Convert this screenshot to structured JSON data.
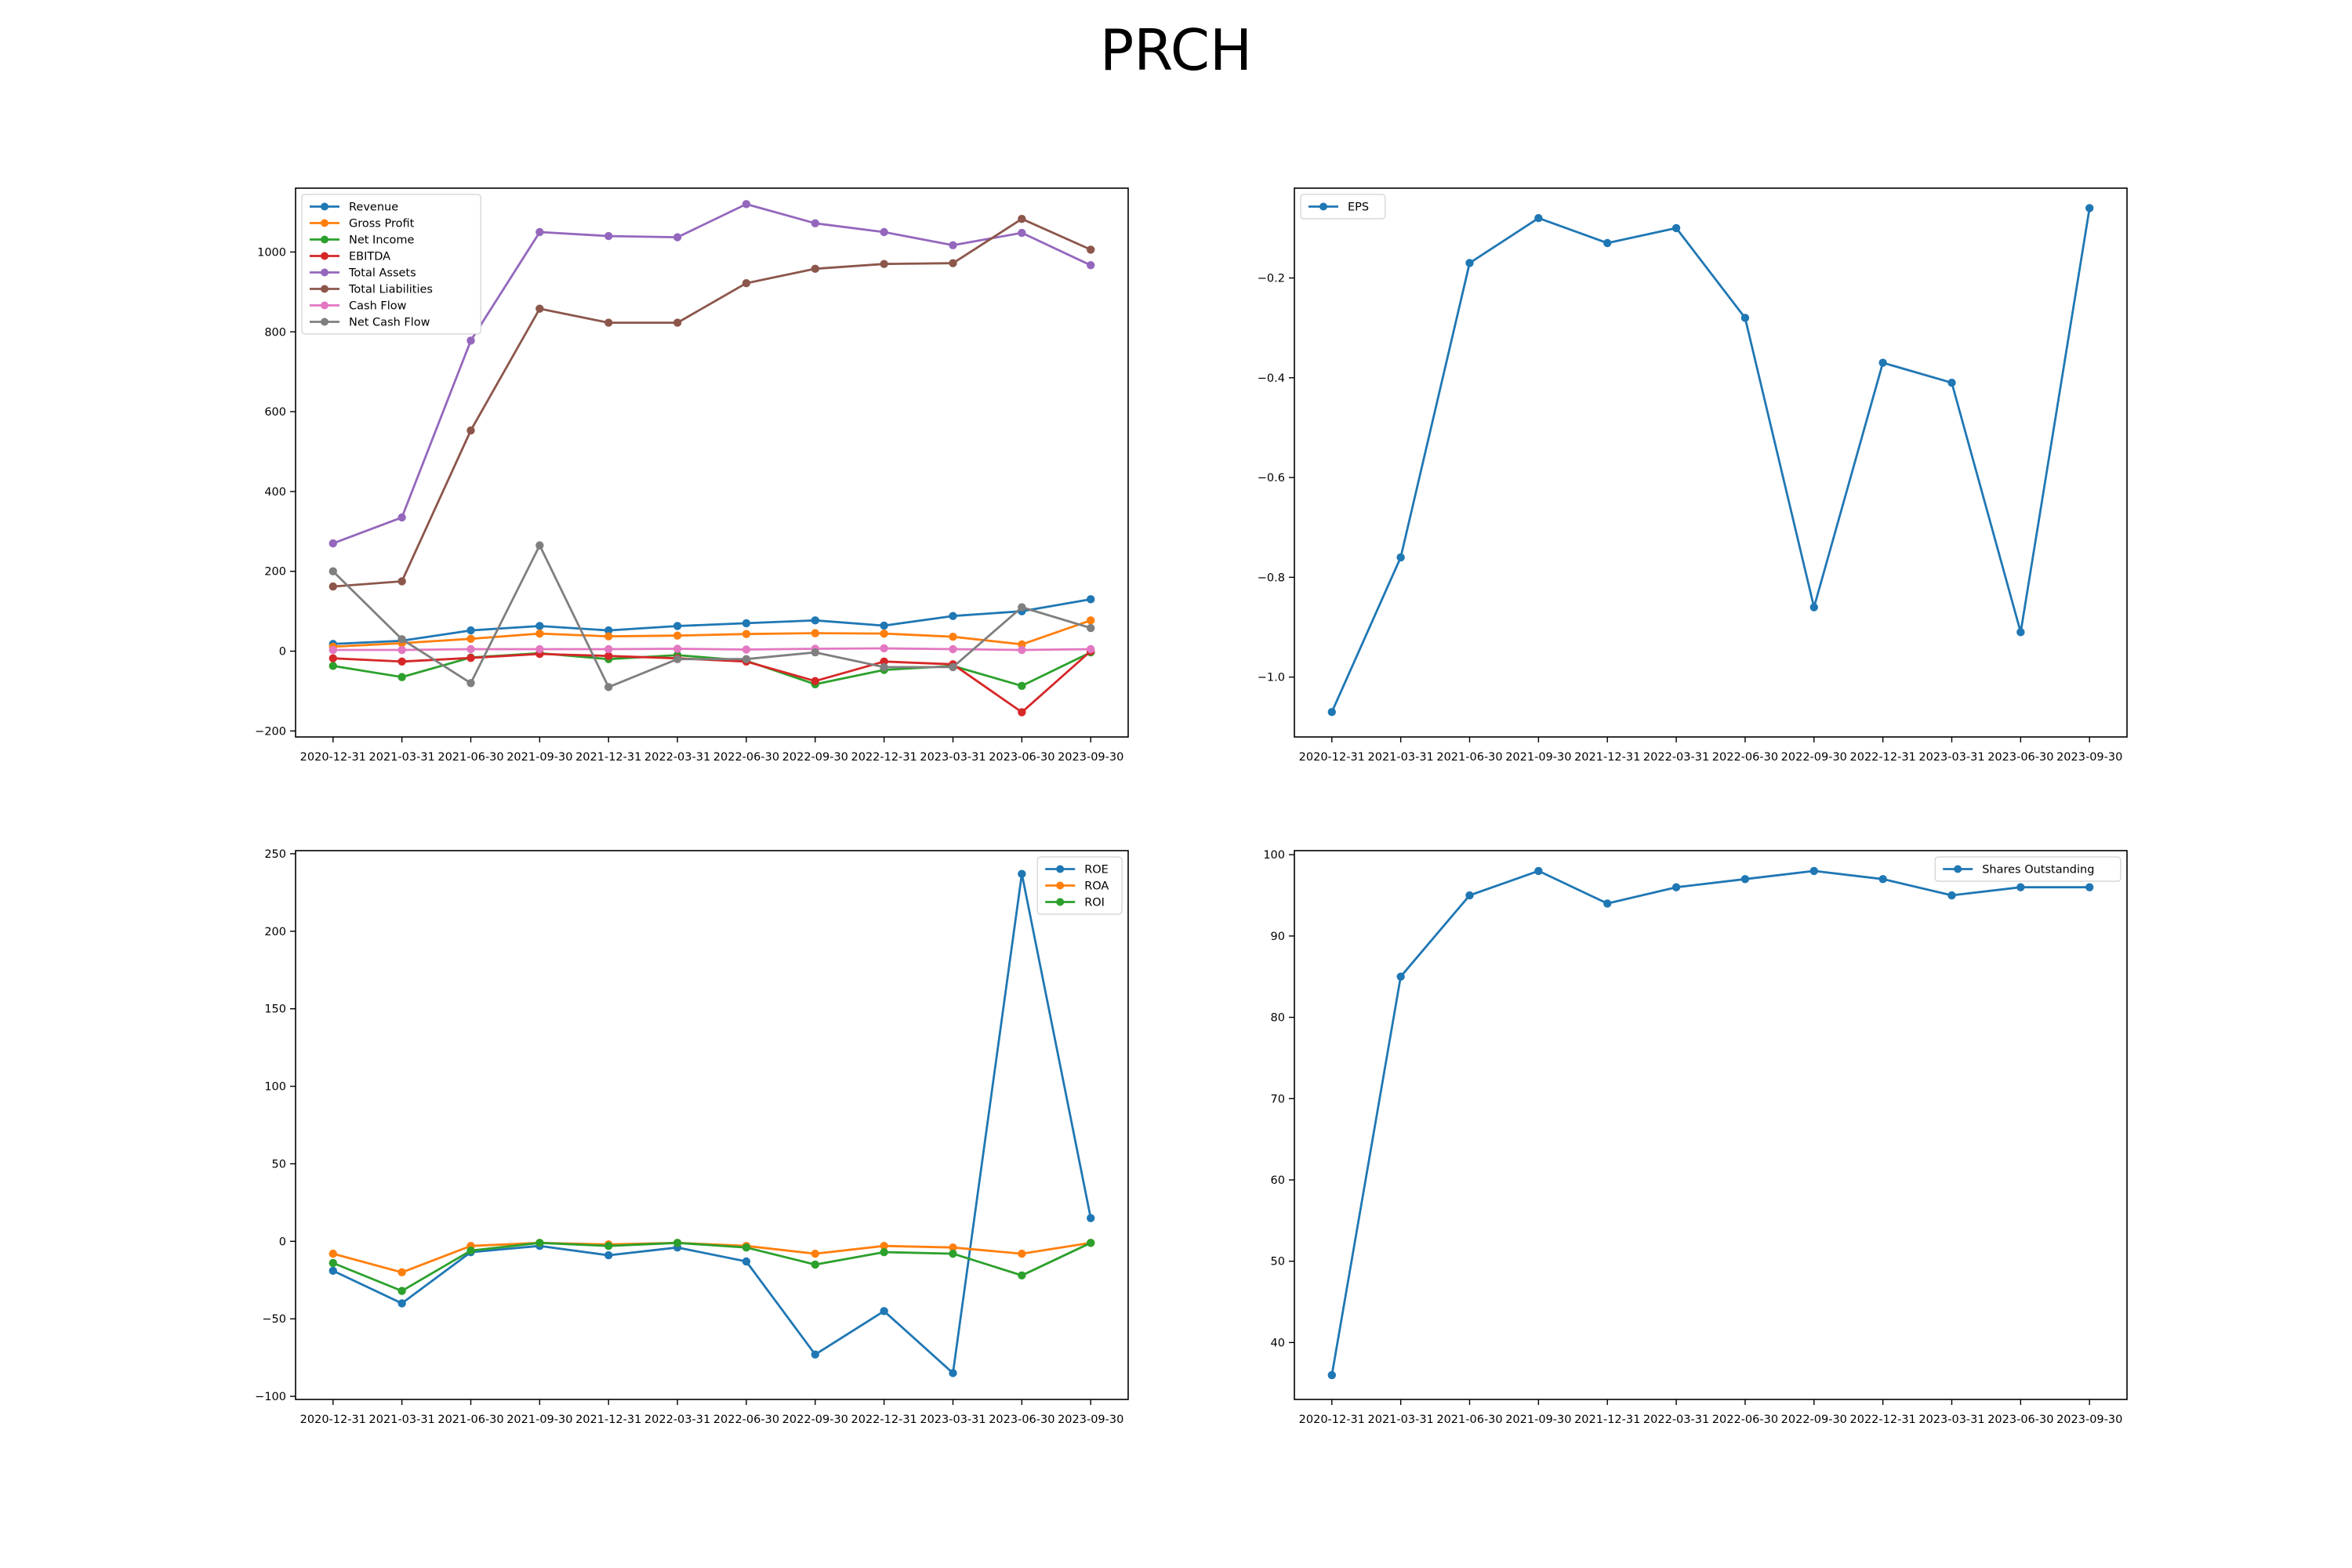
{
  "figure": {
    "title": "PRCH"
  },
  "chart_data": [
    {
      "id": "financials",
      "type": "line",
      "title": "",
      "xlabel": "",
      "ylabel": "",
      "x": [
        "2020-12-31",
        "2021-03-31",
        "2021-06-30",
        "2021-09-30",
        "2021-12-31",
        "2022-03-31",
        "2022-06-30",
        "2022-09-30",
        "2022-12-31",
        "2023-03-31",
        "2023-06-30",
        "2023-09-30"
      ],
      "ylim": [
        -215,
        1160
      ],
      "yticks": [
        -200,
        0,
        200,
        400,
        600,
        800,
        1000
      ],
      "legend": "top-left",
      "grid": false,
      "series": [
        {
          "name": "Revenue",
          "color": "#1f77b4",
          "values": [
            18,
            26,
            52,
            63,
            52,
            63,
            70,
            77,
            64,
            88,
            100,
            130
          ]
        },
        {
          "name": "Gross Profit",
          "color": "#ff7f0e",
          "values": [
            11,
            20,
            31,
            44,
            37,
            39,
            43,
            45,
            44,
            36,
            17,
            77
          ]
        },
        {
          "name": "Net Income",
          "color": "#2ca02c",
          "values": [
            -37,
            -65,
            -16,
            -5,
            -20,
            -10,
            -24,
            -83,
            -47,
            -37,
            -87,
            -3
          ]
        },
        {
          "name": "EBITDA",
          "color": "#d62728",
          "values": [
            -18,
            -26,
            -17,
            -7,
            -12,
            -18,
            -26,
            -75,
            -26,
            -33,
            -153,
            0
          ]
        },
        {
          "name": "Total Assets",
          "color": "#9467bd",
          "values": [
            270,
            335,
            778,
            1050,
            1040,
            1037,
            1120,
            1072,
            1050,
            1017,
            1048,
            967
          ]
        },
        {
          "name": "Total Liabilities",
          "color": "#8c564b",
          "values": [
            162,
            175,
            553,
            858,
            823,
            823,
            922,
            958,
            970,
            972,
            1083,
            1006
          ]
        },
        {
          "name": "Cash Flow",
          "color": "#e377c2",
          "values": [
            3,
            3,
            5,
            5,
            5,
            6,
            4,
            6,
            7,
            5,
            3,
            5
          ]
        },
        {
          "name": "Net Cash Flow",
          "color": "#7f7f7f",
          "values": [
            200,
            30,
            -80,
            265,
            -90,
            -20,
            -20,
            -3,
            -40,
            -40,
            110,
            58
          ]
        }
      ]
    },
    {
      "id": "eps",
      "type": "line",
      "title": "",
      "xlabel": "",
      "ylabel": "",
      "x": [
        "2020-12-31",
        "2021-03-31",
        "2021-06-30",
        "2021-09-30",
        "2021-12-31",
        "2022-03-31",
        "2022-06-30",
        "2022-09-30",
        "2022-12-31",
        "2023-03-31",
        "2023-06-30",
        "2023-09-30"
      ],
      "ylim": [
        -1.12,
        -0.02
      ],
      "yticks": [
        -1.0,
        -0.8,
        -0.6,
        -0.4,
        -0.2
      ],
      "legend": "top-left",
      "grid": false,
      "series": [
        {
          "name": "EPS",
          "color": "#1f77b4",
          "values": [
            -1.07,
            -0.76,
            -0.17,
            -0.08,
            -0.13,
            -0.1,
            -0.28,
            -0.86,
            -0.37,
            -0.41,
            -0.91,
            -0.06
          ]
        }
      ]
    },
    {
      "id": "returns",
      "type": "line",
      "title": "",
      "xlabel": "",
      "ylabel": "",
      "x": [
        "2020-12-31",
        "2021-03-31",
        "2021-06-30",
        "2021-09-30",
        "2021-12-31",
        "2022-03-31",
        "2022-06-30",
        "2022-09-30",
        "2022-12-31",
        "2023-03-31",
        "2023-06-30",
        "2023-09-30"
      ],
      "ylim": [
        -102,
        252
      ],
      "yticks": [
        -100,
        -50,
        0,
        50,
        100,
        150,
        200,
        250
      ],
      "legend": "top-right",
      "grid": false,
      "series": [
        {
          "name": "ROE",
          "color": "#1f77b4",
          "values": [
            -19,
            -40,
            -7,
            -3,
            -9,
            -4,
            -13,
            -73,
            -45,
            -85,
            237,
            15
          ]
        },
        {
          "name": "ROA",
          "color": "#ff7f0e",
          "values": [
            -8,
            -20,
            -3,
            -1,
            -2,
            -1,
            -3,
            -8,
            -3,
            -4,
            -8,
            -1
          ]
        },
        {
          "name": "ROI",
          "color": "#2ca02c",
          "values": [
            -14,
            -32,
            -6,
            -1,
            -3,
            -1,
            -4,
            -15,
            -7,
            -8,
            -22,
            -1
          ]
        }
      ]
    },
    {
      "id": "shares",
      "type": "line",
      "title": "",
      "xlabel": "",
      "ylabel": "",
      "x": [
        "2020-12-31",
        "2021-03-31",
        "2021-06-30",
        "2021-09-30",
        "2021-12-31",
        "2022-03-31",
        "2022-06-30",
        "2022-09-30",
        "2022-12-31",
        "2023-03-31",
        "2023-06-30",
        "2023-09-30"
      ],
      "ylim": [
        33,
        100.5
      ],
      "yticks": [
        40,
        50,
        60,
        70,
        80,
        90,
        100
      ],
      "legend": "top-right",
      "grid": false,
      "series": [
        {
          "name": "Shares Outstanding",
          "color": "#1f77b4",
          "values": [
            36,
            85,
            95,
            98,
            94,
            96,
            97,
            98,
            97,
            95,
            96,
            96
          ]
        }
      ]
    }
  ]
}
